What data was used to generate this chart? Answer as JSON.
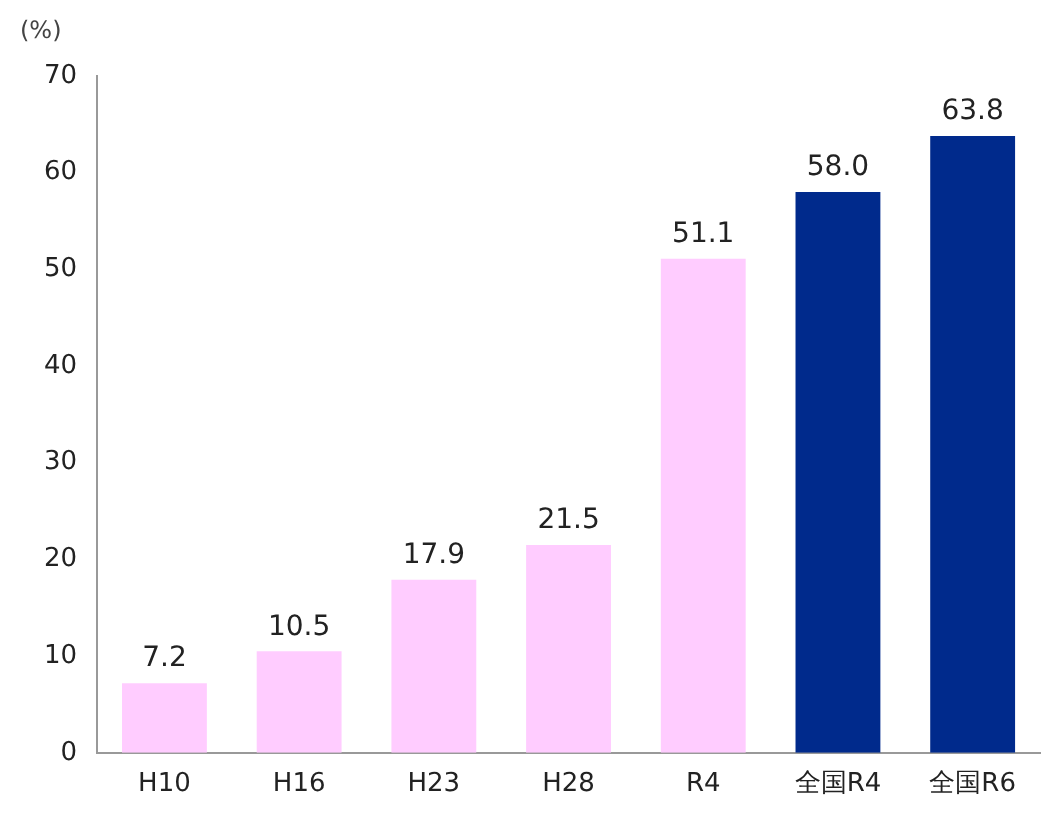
{
  "chart_data": {
    "type": "bar",
    "ylabel": "(%)",
    "categories": [
      "H10",
      "H16",
      "H23",
      "H28",
      "R4",
      "全国R4",
      "全国R6"
    ],
    "values": [
      7.2,
      10.5,
      17.9,
      21.5,
      51.1,
      58.0,
      63.8
    ],
    "value_labels": [
      "7.2",
      "10.5",
      "17.9",
      "21.5",
      "51.1",
      "58.0",
      "63.8"
    ],
    "colors": [
      "#ffccff",
      "#ffccff",
      "#ffccff",
      "#ffccff",
      "#ffccff",
      "#002a8c",
      "#002a8c"
    ],
    "ylim": [
      0,
      70
    ],
    "yticks": [
      0,
      10,
      20,
      30,
      40,
      50,
      60,
      70
    ],
    "grid": false,
    "legend": false
  }
}
